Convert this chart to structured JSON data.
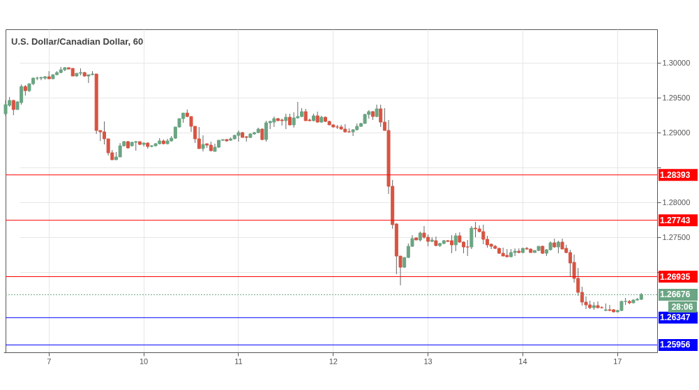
{
  "chart_data": {
    "type": "candlestick",
    "title": "U.S. Dollar/Canadian Dollar, 60",
    "annotations": [
      "28:06"
    ],
    "categories": [
      null,
      null,
      null,
      null,
      null,
      null,
      null,
      null,
      null,
      null,
      null,
      "7",
      null,
      null,
      null,
      null,
      null,
      null,
      null,
      null,
      null,
      null,
      null,
      null,
      null,
      null,
      null,
      null,
      null,
      null,
      null,
      null,
      null,
      null,
      null,
      "10",
      null,
      null,
      null,
      null,
      null,
      null,
      null,
      null,
      null,
      null,
      null,
      null,
      null,
      null,
      null,
      null,
      null,
      null,
      null,
      null,
      null,
      null,
      null,
      "11",
      null,
      null,
      null,
      null,
      null,
      null,
      null,
      null,
      null,
      null,
      null,
      null,
      null,
      null,
      null,
      null,
      null,
      null,
      null,
      null,
      null,
      null,
      null,
      "12",
      null,
      null,
      null,
      null,
      null,
      null,
      null,
      null,
      null,
      null,
      null,
      null,
      null,
      null,
      null,
      null,
      null,
      null,
      null,
      null,
      null,
      null,
      null,
      "13",
      null,
      null,
      null,
      null,
      null,
      null,
      null,
      null,
      null,
      null,
      null,
      null,
      null,
      null,
      null,
      null,
      null,
      null,
      null,
      null,
      null,
      null,
      null,
      "14",
      null,
      null,
      null,
      null,
      null,
      null,
      null,
      null,
      null,
      null,
      null,
      null,
      null,
      null,
      null,
      null,
      null,
      null,
      null,
      null,
      null,
      null,
      null,
      "17",
      null,
      null,
      null,
      null,
      null,
      null
    ],
    "ohlc": [
      [
        1.2927,
        1.2946,
        1.2924,
        1.294
      ],
      [
        1.2939,
        1.2951,
        1.2937,
        1.2946
      ],
      [
        1.2946,
        1.2947,
        1.2925,
        1.2933
      ],
      [
        1.2933,
        1.2945,
        1.2933,
        1.2944
      ],
      [
        1.2943,
        1.2969,
        1.294,
        1.2966
      ],
      [
        1.2966,
        1.2968,
        1.2953,
        1.296
      ],
      [
        1.296,
        1.297,
        1.2958,
        1.297
      ],
      [
        1.297,
        1.2979,
        1.2968,
        1.2978
      ],
      [
        1.2978,
        1.298,
        1.2975,
        1.2978
      ],
      [
        1.2978,
        1.298,
        1.2975,
        1.2979
      ],
      [
        1.2978,
        1.2981,
        1.2976,
        1.298
      ],
      [
        1.298,
        1.2988,
        1.2977,
        1.2977
      ],
      [
        1.2977,
        1.2983,
        1.2977,
        1.2983
      ],
      [
        1.2983,
        1.2988,
        1.2982,
        1.2986
      ],
      [
        1.2986,
        1.2994,
        1.2985,
        1.299
      ],
      [
        1.299,
        1.2994,
        1.2988,
        1.2993
      ],
      [
        1.2993,
        1.2993,
        1.2991,
        1.2991
      ],
      [
        1.2992,
        1.2992,
        1.2981,
        1.2981
      ],
      [
        1.2981,
        1.2985,
        1.298,
        1.2985
      ],
      [
        1.2985,
        1.2992,
        1.2982,
        1.2986
      ],
      [
        1.2986,
        1.2987,
        1.298,
        1.2981
      ],
      [
        1.2981,
        1.2983,
        1.2971,
        1.2983
      ],
      [
        1.2983,
        1.2988,
        1.2982,
        1.2984
      ],
      [
        1.2984,
        1.2984,
        1.2898,
        1.2903
      ],
      [
        1.2903,
        1.2903,
        1.2888,
        1.2901
      ],
      [
        1.2901,
        1.2916,
        1.2883,
        1.2891
      ],
      [
        1.2891,
        1.2891,
        1.2867,
        1.2871
      ],
      [
        1.2871,
        1.2875,
        1.2861,
        1.2861
      ],
      [
        1.2861,
        1.2872,
        1.2861,
        1.2865
      ],
      [
        1.2865,
        1.2885,
        1.2865,
        1.2881
      ],
      [
        1.2881,
        1.2888,
        1.288,
        1.2887
      ],
      [
        1.2887,
        1.2888,
        1.2877,
        1.2878
      ],
      [
        1.2881,
        1.2887,
        1.288,
        1.2886
      ],
      [
        1.2886,
        1.2888,
        1.2874,
        1.2887
      ],
      [
        1.2887,
        1.2887,
        1.2882,
        1.2883
      ],
      [
        1.2883,
        1.2886,
        1.288,
        1.2885
      ],
      [
        1.2885,
        1.2886,
        1.2877,
        1.288
      ],
      [
        1.288,
        1.2882,
        1.2879,
        1.2881
      ],
      [
        1.2881,
        1.2885,
        1.288,
        1.2884
      ],
      [
        1.2884,
        1.2892,
        1.2883,
        1.2888
      ],
      [
        1.2888,
        1.289,
        1.2883,
        1.2884
      ],
      [
        1.2884,
        1.2891,
        1.2883,
        1.2888
      ],
      [
        1.2888,
        1.2895,
        1.2887,
        1.2892
      ],
      [
        1.2892,
        1.2908,
        1.2891,
        1.2908
      ],
      [
        1.2908,
        1.292,
        1.2907,
        1.292
      ],
      [
        1.292,
        1.2928,
        1.2914,
        1.2928
      ],
      [
        1.2928,
        1.2933,
        1.2922,
        1.2923
      ],
      [
        1.2923,
        1.2923,
        1.2901,
        1.2909
      ],
      [
        1.2909,
        1.2909,
        1.2885,
        1.2891
      ],
      [
        1.2891,
        1.2908,
        1.2877,
        1.2877
      ],
      [
        1.2877,
        1.2896,
        1.2873,
        1.2883
      ],
      [
        1.2884,
        1.2884,
        1.2878,
        1.2882
      ],
      [
        1.2882,
        1.2887,
        1.2873,
        1.2874
      ],
      [
        1.2873,
        1.2884,
        1.2873,
        1.2879
      ],
      [
        1.2879,
        1.2889,
        1.2878,
        1.2889
      ],
      [
        1.2889,
        1.289,
        1.2888,
        1.289
      ],
      [
        1.289,
        1.2891,
        1.2887,
        1.2888
      ],
      [
        1.2889,
        1.2893,
        1.2888,
        1.2891
      ],
      [
        1.2891,
        1.2897,
        1.289,
        1.2896
      ],
      [
        1.2896,
        1.2903,
        1.2887,
        1.29
      ],
      [
        1.29,
        1.2901,
        1.2893,
        1.2893
      ],
      [
        1.2894,
        1.2895,
        1.2887,
        1.2893
      ],
      [
        1.2893,
        1.2899,
        1.2892,
        1.2898
      ],
      [
        1.2898,
        1.2901,
        1.2897,
        1.29
      ],
      [
        1.29,
        1.2907,
        1.2899,
        1.2905
      ],
      [
        1.2905,
        1.2906,
        1.2889,
        1.289
      ],
      [
        1.289,
        1.2917,
        1.2887,
        1.2914
      ],
      [
        1.2914,
        1.2917,
        1.2905,
        1.2916
      ],
      [
        1.2915,
        1.2923,
        1.2908,
        1.292
      ],
      [
        1.292,
        1.2921,
        1.2917,
        1.2917
      ],
      [
        1.2918,
        1.292,
        1.291,
        1.2917
      ],
      [
        1.2917,
        1.2927,
        1.2905,
        1.2922
      ],
      [
        1.2922,
        1.2927,
        1.291,
        1.2911
      ],
      [
        1.2911,
        1.2929,
        1.2907,
        1.2921
      ],
      [
        1.2921,
        1.2944,
        1.292,
        1.2923
      ],
      [
        1.2923,
        1.2935,
        1.2922,
        1.293
      ],
      [
        1.293,
        1.2934,
        1.2917,
        1.2917
      ],
      [
        1.2918,
        1.292,
        1.2916,
        1.2917
      ],
      [
        1.2917,
        1.2927,
        1.2916,
        1.2924
      ],
      [
        1.2924,
        1.293,
        1.2914,
        1.2915
      ],
      [
        1.2915,
        1.2924,
        1.2914,
        1.2922
      ],
      [
        1.2922,
        1.2923,
        1.2915,
        1.2916
      ],
      [
        1.2916,
        1.2917,
        1.2911,
        1.2911
      ],
      [
        1.2911,
        1.2912,
        1.2907,
        1.2908
      ],
      [
        1.2908,
        1.2911,
        1.2905,
        1.2908
      ],
      [
        1.2908,
        1.2911,
        1.2904,
        1.2905
      ],
      [
        1.2905,
        1.2912,
        1.29,
        1.2901
      ],
      [
        1.2901,
        1.2906,
        1.29,
        1.2901
      ],
      [
        1.2901,
        1.2905,
        1.2895,
        1.2904
      ],
      [
        1.2904,
        1.2913,
        1.2903,
        1.2909
      ],
      [
        1.2909,
        1.2914,
        1.2908,
        1.2913
      ],
      [
        1.2913,
        1.2927,
        1.2913,
        1.2926
      ],
      [
        1.2926,
        1.2932,
        1.292,
        1.293
      ],
      [
        1.293,
        1.2931,
        1.2918,
        1.2923
      ],
      [
        1.2923,
        1.294,
        1.2922,
        1.2934
      ],
      [
        1.2934,
        1.294,
        1.2908,
        1.2915
      ],
      [
        1.2915,
        1.2935,
        1.2903,
        1.2903
      ],
      [
        1.2903,
        1.2918,
        1.2812,
        1.2823
      ],
      [
        1.2823,
        1.2832,
        1.2762,
        1.2768
      ],
      [
        1.2769,
        1.277,
        1.2697,
        1.2723
      ],
      [
        1.2723,
        1.2723,
        1.2681,
        1.2707
      ],
      [
        1.2707,
        1.2721,
        1.2706,
        1.2721
      ],
      [
        1.2721,
        1.2741,
        1.272,
        1.2737
      ],
      [
        1.2737,
        1.2753,
        1.2736,
        1.2748
      ],
      [
        1.2749,
        1.275,
        1.2746,
        1.2746
      ],
      [
        1.2746,
        1.2758,
        1.2744,
        1.2756
      ],
      [
        1.2756,
        1.2766,
        1.2748,
        1.275
      ],
      [
        1.275,
        1.2754,
        1.2737,
        1.2744
      ],
      [
        1.2744,
        1.275,
        1.2743,
        1.2746
      ],
      [
        1.2745,
        1.2751,
        1.2737,
        1.2738
      ],
      [
        1.2738,
        1.2742,
        1.2736,
        1.2741
      ],
      [
        1.2741,
        1.2746,
        1.274,
        1.2745
      ],
      [
        1.2745,
        1.2746,
        1.2743,
        1.2744
      ],
      [
        1.2745,
        1.2753,
        1.2727,
        1.2739
      ],
      [
        1.2739,
        1.2756,
        1.273,
        1.2752
      ],
      [
        1.2752,
        1.2757,
        1.2742,
        1.2743
      ],
      [
        1.2743,
        1.2744,
        1.2727,
        1.2736
      ],
      [
        1.2736,
        1.2746,
        1.2723,
        1.2736
      ],
      [
        1.2736,
        1.2766,
        1.2733,
        1.2763
      ],
      [
        1.2763,
        1.2772,
        1.275,
        1.2762
      ],
      [
        1.2762,
        1.2767,
        1.2757,
        1.2758
      ],
      [
        1.2758,
        1.2768,
        1.274,
        1.2747
      ],
      [
        1.2747,
        1.2752,
        1.2735,
        1.2739
      ],
      [
        1.274,
        1.2741,
        1.2733,
        1.2737
      ],
      [
        1.2737,
        1.2739,
        1.2733,
        1.2734
      ],
      [
        1.2734,
        1.2735,
        1.2726,
        1.2727
      ],
      [
        1.2727,
        1.2735,
        1.2723,
        1.2723
      ],
      [
        1.2724,
        1.2733,
        1.2721,
        1.2722
      ],
      [
        1.2722,
        1.2733,
        1.2721,
        1.2728
      ],
      [
        1.2728,
        1.2734,
        1.2723,
        1.273
      ],
      [
        1.273,
        1.2734,
        1.2727,
        1.2728
      ],
      [
        1.2728,
        1.2735,
        1.2727,
        1.2734
      ],
      [
        1.2734,
        1.2736,
        1.2732,
        1.2733
      ],
      [
        1.2733,
        1.2734,
        1.2728,
        1.2728
      ],
      [
        1.2728,
        1.2731,
        1.2728,
        1.2731
      ],
      [
        1.2731,
        1.2737,
        1.273,
        1.2737
      ],
      [
        1.2737,
        1.2738,
        1.2726,
        1.2727
      ],
      [
        1.2727,
        1.2733,
        1.2723,
        1.2732
      ],
      [
        1.2732,
        1.2744,
        1.2731,
        1.2742
      ],
      [
        1.2742,
        1.2748,
        1.2735,
        1.2736
      ],
      [
        1.2736,
        1.2745,
        1.2727,
        1.2743
      ],
      [
        1.2743,
        1.2748,
        1.2733,
        1.2733
      ],
      [
        1.2734,
        1.2739,
        1.2727,
        1.2728
      ],
      [
        1.2728,
        1.2732,
        1.2693,
        1.2713
      ],
      [
        1.2714,
        1.2725,
        1.2685,
        1.2691
      ],
      [
        1.2691,
        1.2706,
        1.2666,
        1.2671
      ],
      [
        1.2671,
        1.2679,
        1.2652,
        1.2657
      ],
      [
        1.2657,
        1.2665,
        1.2647,
        1.2653
      ],
      [
        1.2653,
        1.2659,
        1.2647,
        1.2649
      ],
      [
        1.2649,
        1.2657,
        1.2646,
        1.2652
      ],
      [
        1.2652,
        1.2658,
        1.2648,
        1.2649
      ],
      [
        1.2649,
        1.2651,
        1.2648,
        1.2649
      ],
      [
        1.2645,
        1.2655,
        1.2644,
        1.2646
      ],
      [
        1.2646,
        1.2653,
        1.2644,
        1.2645
      ],
      [
        1.2646,
        1.2647,
        1.2642,
        1.2643
      ],
      [
        1.2643,
        1.2646,
        1.2642,
        1.2645
      ],
      [
        1.2645,
        1.2659,
        1.2644,
        1.2658
      ],
      [
        1.2658,
        1.2663,
        1.2653,
        1.2658
      ],
      [
        1.2658,
        1.266,
        1.2654,
        1.2656
      ],
      [
        1.2656,
        1.2661,
        1.2655,
        1.266
      ],
      [
        1.266,
        1.2663,
        1.2659,
        1.2661
      ],
      [
        1.2661,
        1.267,
        1.266,
        1.2668
      ]
    ],
    "colors": [
      "#6ba583",
      "#6ba583",
      "#d75442",
      "#6ba583",
      "#6ba583",
      "#d75442",
      "#6ba583",
      "#6ba583",
      "#6ba583",
      "#6ba583",
      "#6ba583",
      "#d75442",
      "#6ba583",
      "#6ba583",
      "#6ba583",
      "#6ba583",
      "#d75442",
      "#d75442",
      "#6ba583",
      "#6ba583",
      "#d75442",
      "#6ba583",
      "#6ba583",
      "#d75442",
      "#d75442",
      "#d75442",
      "#d75442",
      "#d75442",
      "#6ba583",
      "#6ba583",
      "#6ba583",
      "#d75442",
      "#6ba583",
      "#6ba583",
      "#d75442",
      "#6ba583",
      "#d75442",
      "#6ba583",
      "#6ba583",
      "#6ba583",
      "#d75442",
      "#6ba583",
      "#6ba583",
      "#6ba583",
      "#6ba583",
      "#6ba583",
      "#d75442",
      "#d75442",
      "#d75442",
      "#d75442",
      "#6ba583",
      "#d75442",
      "#d75442",
      "#6ba583",
      "#6ba583",
      "#6ba583",
      "#d75442",
      "#6ba583",
      "#6ba583",
      "#6ba583",
      "#d75442",
      "#d75442",
      "#6ba583",
      "#6ba583",
      "#6ba583",
      "#d75442",
      "#6ba583",
      "#6ba583",
      "#6ba583",
      "#d75442",
      "#d75442",
      "#6ba583",
      "#d75442",
      "#6ba583",
      "#6ba583",
      "#6ba583",
      "#d75442",
      "#d75442",
      "#6ba583",
      "#d75442",
      "#6ba583",
      "#d75442",
      "#d75442",
      "#d75442",
      "#d75442",
      "#d75442",
      "#d75442",
      "#d75442",
      "#6ba583",
      "#6ba583",
      "#6ba583",
      "#6ba583",
      "#6ba583",
      "#d75442",
      "#6ba583",
      "#d75442",
      "#d75442",
      "#d75442",
      "#d75442",
      "#d75442",
      "#d75442",
      "#6ba583",
      "#6ba583",
      "#6ba583",
      "#d75442",
      "#6ba583",
      "#d75442",
      "#d75442",
      "#6ba583",
      "#d75442",
      "#6ba583",
      "#6ba583",
      "#d75442",
      "#d75442",
      "#6ba583",
      "#d75442",
      "#d75442",
      "#d75442",
      "#6ba583",
      "#d75442",
      "#d75442",
      "#d75442",
      "#d75442",
      "#d75442",
      "#d75442",
      "#d75442",
      "#d75442",
      "#d75442",
      "#6ba583",
      "#6ba583",
      "#d75442",
      "#6ba583",
      "#d75442",
      "#d75442",
      "#6ba583",
      "#6ba583",
      "#d75442",
      "#6ba583",
      "#6ba583",
      "#d75442",
      "#6ba583",
      "#d75442",
      "#d75442",
      "#d75442",
      "#d75442",
      "#d75442",
      "#d75442",
      "#d75442",
      "#d75442",
      "#6ba583",
      "#d75442",
      "#d75442",
      "#6ba583",
      "#d75442",
      "#d75442",
      "#6ba583",
      "#6ba583",
      "#6ba583",
      "#d75442",
      "#6ba583",
      "#6ba583",
      "#6ba583"
    ],
    "ylim": [
      1.2585,
      1.3048
    ],
    "yticks": [
      {
        "value": 1.3,
        "label": "1.30000"
      },
      {
        "value": 1.295,
        "label": "1.29500"
      },
      {
        "value": 1.29,
        "label": "1.29000"
      },
      {
        "value": 1.285,
        "label": null
      },
      {
        "value": 1.28,
        "label": "1.28000"
      },
      {
        "value": 1.275,
        "label": "1.27500"
      },
      {
        "value": 1.27,
        "label": null
      }
    ],
    "grid": true,
    "ref_lines": [
      {
        "axis": "y",
        "value": 1.28393,
        "label": "1.28393",
        "color": "#ff0000",
        "line_style": "solid"
      },
      {
        "axis": "y",
        "value": 1.27743,
        "label": "1.27743",
        "color": "#ff0000",
        "line_style": "solid"
      },
      {
        "axis": "y",
        "value": 1.26935,
        "label": "1.26935",
        "color": "#ff0000",
        "line_style": "solid"
      },
      {
        "axis": "y",
        "value": 1.26676,
        "label": "1.26676",
        "color": "#6ba583",
        "line_style": "dotted"
      },
      {
        "axis": "y",
        "value": 1.26347,
        "label": "1.26347",
        "color": "#0000ff",
        "line_style": "solid"
      },
      {
        "axis": "y",
        "value": 1.25956,
        "label": "1.25956",
        "color": "#0000ff",
        "line_style": "solid"
      }
    ]
  }
}
